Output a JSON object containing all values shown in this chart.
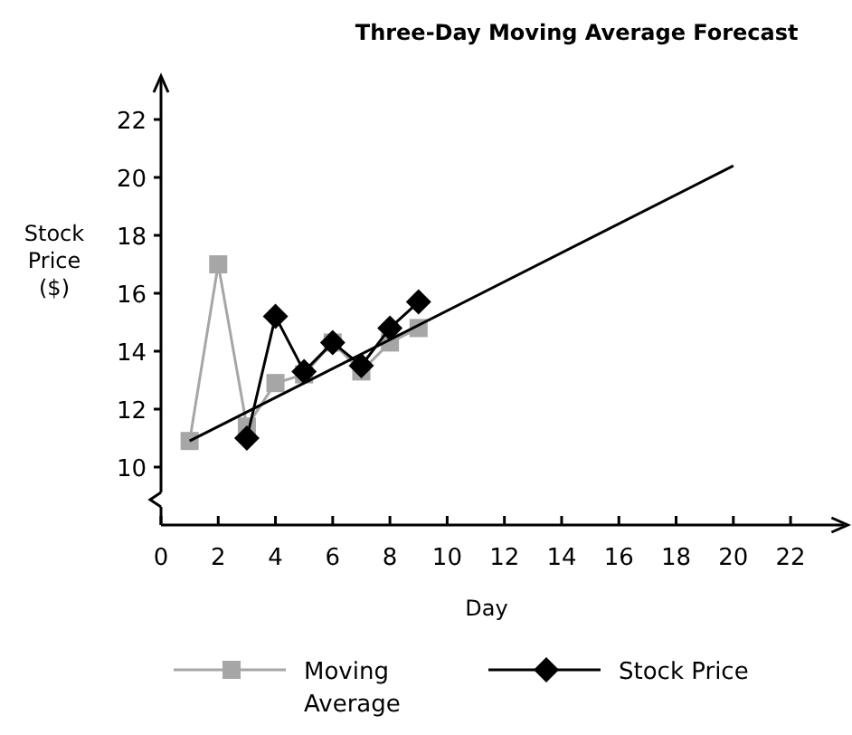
{
  "chart_data": {
    "type": "line",
    "title": "Three-Day Moving Average Forecast",
    "xlabel": "Day",
    "ylabel": "Stock Price ($)",
    "xlim": [
      0,
      24
    ],
    "xticks": [
      0,
      2,
      4,
      6,
      8,
      10,
      12,
      14,
      16,
      18,
      20,
      22
    ],
    "ylim": [
      8,
      23.5
    ],
    "yticks": [
      10,
      12,
      14,
      16,
      18,
      20,
      22
    ],
    "grid": false,
    "legend": "bottom",
    "series": [
      {
        "name": "Moving Average",
        "color": "#a6a6a6",
        "marker": "square",
        "x": [
          1,
          2,
          3,
          4,
          5,
          6,
          7,
          8,
          9
        ],
        "values": [
          10.9,
          17.0,
          11.4,
          12.9,
          13.2,
          14.3,
          13.3,
          14.3,
          14.8
        ]
      },
      {
        "name": "Stock Price",
        "color": "#000000",
        "marker": "diamond",
        "x": [
          3,
          4,
          5,
          6,
          7,
          8,
          9
        ],
        "values": [
          11.0,
          15.2,
          13.3,
          14.3,
          13.5,
          14.8,
          15.7
        ]
      },
      {
        "type": "line",
        "color": "#000000",
        "marker": "none",
        "x": [
          1,
          20
        ],
        "values": [
          10.9,
          20.4
        ]
      }
    ]
  }
}
